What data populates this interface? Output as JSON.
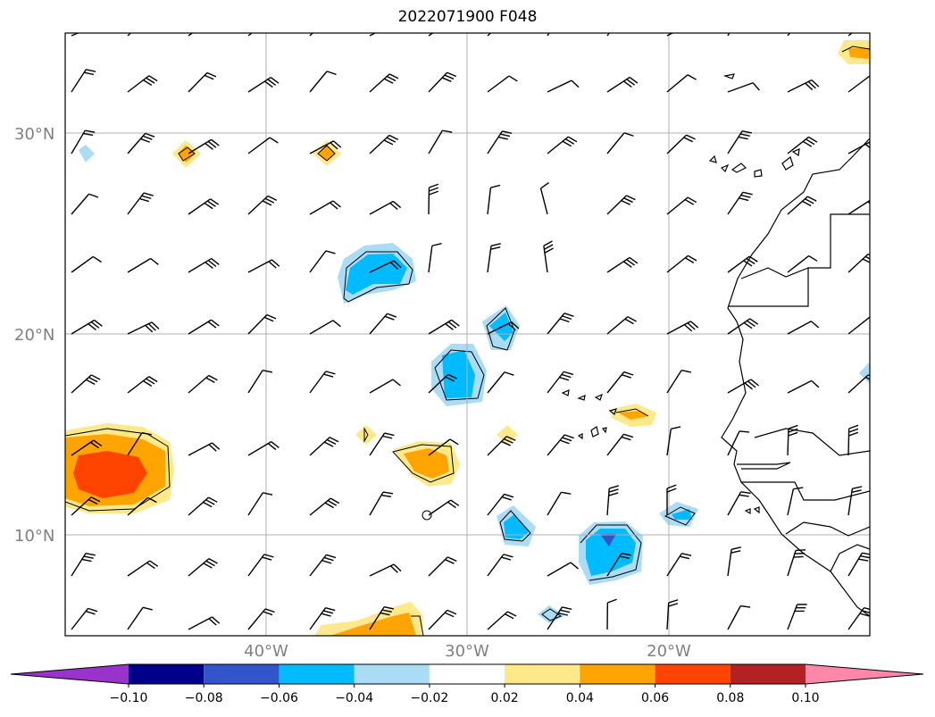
{
  "title": "2022071900 F048",
  "map": {
    "lat_labels": [
      "30°N",
      "20°N",
      "10°N"
    ],
    "lon_labels": [
      "40°W",
      "30°W",
      "20°W"
    ],
    "lat_values": [
      30,
      20,
      10
    ],
    "lon_values": [
      -40,
      -30,
      -20
    ],
    "extent": {
      "lon_min": -50,
      "lon_max": -10,
      "lat_min": 5,
      "lat_max": 35
    }
  },
  "colorbar": {
    "tick_labels": [
      "−0.10",
      "−0.08",
      "−0.06",
      "−0.04",
      "−0.02",
      "0.02",
      "0.04",
      "0.06",
      "0.08",
      "0.10"
    ],
    "bins": [
      {
        "color": "#9933cc",
        "role": "extend-low"
      },
      {
        "color": "#000088"
      },
      {
        "color": "#3355cc"
      },
      {
        "color": "#00bbff"
      },
      {
        "color": "#aaddf5"
      },
      {
        "color": "#ffffff"
      },
      {
        "color": "#fde98a"
      },
      {
        "color": "#ffa400"
      },
      {
        "color": "#ff4400"
      },
      {
        "color": "#b22222"
      },
      {
        "color": "#ff88aa",
        "role": "extend-high"
      }
    ]
  }
}
